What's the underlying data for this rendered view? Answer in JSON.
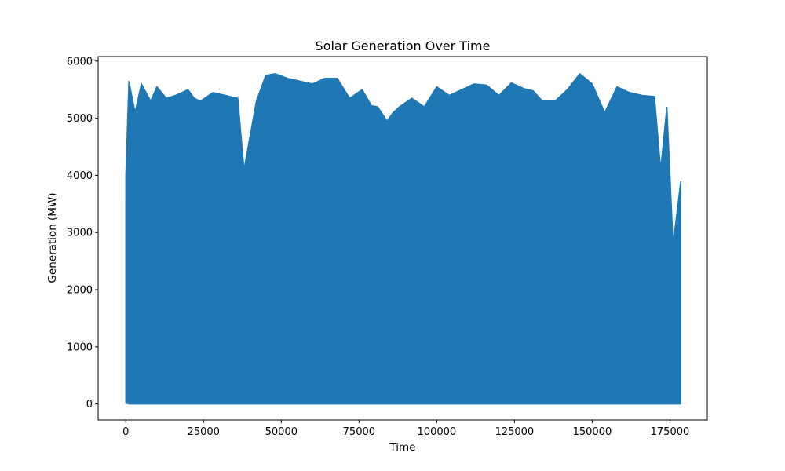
{
  "chart_data": {
    "type": "line",
    "title": "Solar Generation Over Time",
    "xlabel": "Time",
    "ylabel": "Generation (MW)",
    "xlim": [
      -8900,
      187000
    ],
    "ylim": [
      -280,
      6080
    ],
    "x_ticks": [
      0,
      25000,
      50000,
      75000,
      100000,
      125000,
      150000,
      175000
    ],
    "x_tick_labels": [
      "0",
      "25000",
      "50000",
      "75000",
      "100000",
      "125000",
      "150000",
      "175000"
    ],
    "y_ticks": [
      0,
      1000,
      2000,
      3000,
      4000,
      5000,
      6000
    ],
    "y_tick_labels": [
      "0",
      "1000",
      "2000",
      "3000",
      "4000",
      "5000",
      "6000"
    ],
    "grid": false,
    "series": [
      {
        "color": "#1f77b4",
        "x_range": [
          0,
          178500
        ],
        "envelope_x": [
          0,
          1000,
          3000,
          5000,
          8000,
          10000,
          13000,
          16000,
          20000,
          22000,
          24000,
          28000,
          32000,
          36000,
          38000,
          42000,
          45000,
          48000,
          52000,
          56000,
          60000,
          64000,
          68000,
          72000,
          76000,
          79000,
          81000,
          84000,
          86000,
          88000,
          92000,
          96000,
          100000,
          104000,
          108000,
          112000,
          116000,
          120000,
          124000,
          128000,
          131000,
          134000,
          138000,
          142000,
          146000,
          150000,
          154000,
          158000,
          162000,
          166000,
          170000,
          172000,
          174000,
          176000,
          178500
        ],
        "envelope_max": [
          4000,
          5650,
          5100,
          5600,
          5300,
          5550,
          5350,
          5400,
          5500,
          5350,
          5300,
          5450,
          5400,
          5350,
          4100,
          5300,
          5750,
          5780,
          5700,
          5650,
          5600,
          5700,
          5700,
          5350,
          5500,
          5220,
          5200,
          4950,
          5100,
          5200,
          5350,
          5200,
          5550,
          5400,
          5500,
          5600,
          5580,
          5400,
          5620,
          5520,
          5480,
          5300,
          5300,
          5500,
          5780,
          5600,
          5100,
          5550,
          5450,
          5400,
          5380,
          4100,
          5200,
          2800,
          3900
        ],
        "envelope_min": [
          30,
          0,
          0,
          0,
          0,
          0,
          0,
          0,
          0,
          0,
          0,
          0,
          0,
          0,
          0,
          0,
          0,
          0,
          0,
          0,
          0,
          0,
          0,
          0,
          0,
          0,
          0,
          0,
          0,
          0,
          0,
          0,
          0,
          0,
          0,
          0,
          0,
          0,
          0,
          0,
          0,
          0,
          0,
          0,
          0,
          0,
          0,
          0,
          0,
          0,
          0,
          0,
          0,
          0,
          0
        ]
      }
    ]
  }
}
